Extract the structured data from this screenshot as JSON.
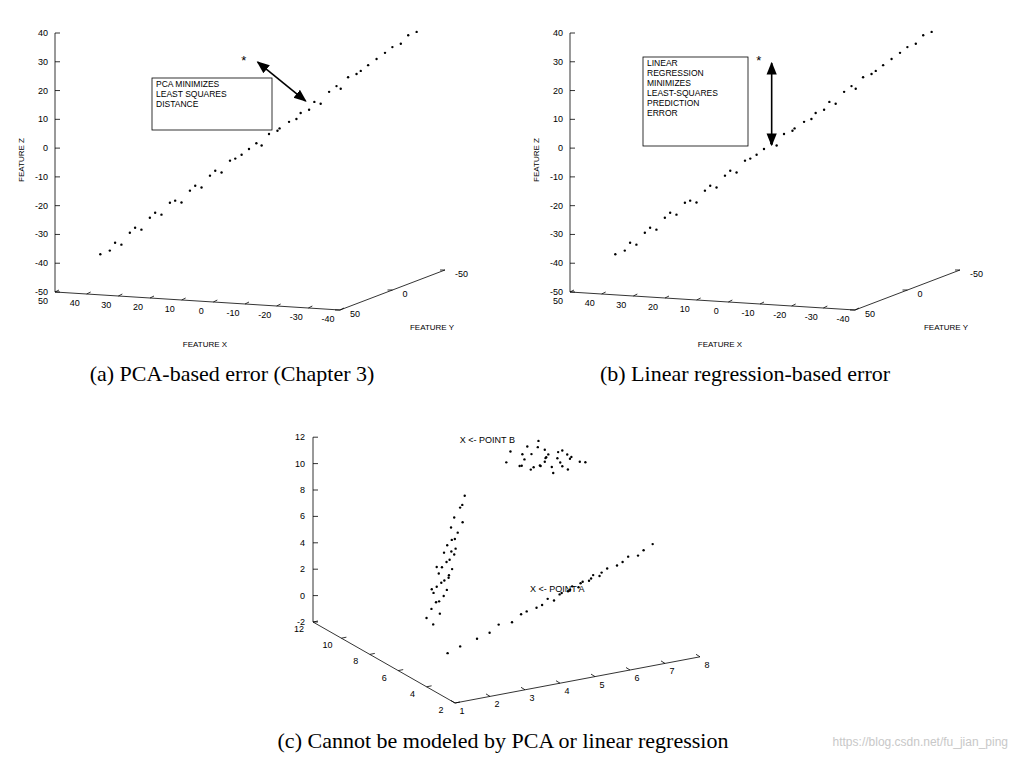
{
  "chart_data": [
    {
      "type": "scatter",
      "title": "(a) PCA-based error (Chapter 3)",
      "xlabel": "FEATURE X",
      "ylabel": "FEATURE Y",
      "zlabel": "FEATURE Z",
      "xlim": [
        50,
        -40
      ],
      "xticks": [
        50,
        40,
        30,
        20,
        10,
        0,
        -10,
        -20,
        -30,
        -40
      ],
      "ylim": [
        50,
        -50
      ],
      "yticks": [
        50,
        0,
        -50
      ],
      "zlim": [
        -50,
        40
      ],
      "zticks": [
        -50,
        -40,
        -30,
        -20,
        -10,
        0,
        10,
        20,
        30,
        40
      ],
      "series": [
        {
          "color": "#000000",
          "marker": "dot",
          "x": [
            40,
            38,
            36,
            35,
            33,
            31,
            30,
            28,
            26,
            25,
            23,
            21,
            20,
            18,
            16,
            15,
            13,
            11,
            10,
            8,
            6,
            5,
            3,
            1,
            0,
            -2,
            -4,
            -5,
            -7,
            -9,
            -10,
            -12,
            -14,
            -15,
            -17,
            -19,
            -20,
            -22,
            -24,
            -25,
            -27,
            -29,
            -31,
            -33,
            -35,
            -37,
            -39
          ],
          "y": [
            37,
            34,
            35,
            32,
            30,
            31,
            28,
            26,
            27,
            24,
            22,
            23,
            20,
            18,
            19,
            16,
            14,
            15,
            12,
            10,
            11,
            8,
            7,
            6,
            4,
            3,
            1,
            2,
            -1,
            -2,
            -3,
            -5,
            -4,
            -7,
            -9,
            -10,
            -11,
            -12,
            -14,
            -15,
            -16,
            -18,
            -20,
            -21,
            -23,
            -24,
            -26
          ],
          "z": [
            -38,
            -37,
            -34,
            -35,
            -31,
            -29,
            -30,
            -26,
            -24,
            -25,
            -21,
            -20,
            -21,
            -17,
            -15,
            -16,
            -12,
            -10,
            -11,
            -7,
            -6,
            -5,
            -3,
            -1,
            -2,
            2,
            3,
            4,
            6,
            7,
            9,
            10,
            13,
            12,
            16,
            18,
            17,
            21,
            22,
            23,
            25,
            27,
            29,
            31,
            32,
            35,
            36
          ]
        }
      ],
      "annotations": [
        {
          "text": "*",
          "x": 7,
          "y": 0,
          "z": 27
        }
      ],
      "box_text": [
        "PCA MINIMIZES",
        "LEAST SQUARES",
        "DISTANCE"
      ]
    },
    {
      "type": "scatter",
      "title": "(b) Linear regression-based error",
      "xlabel": "FEATURE X",
      "ylabel": "FEATURE Y",
      "zlabel": "FEATURE Z",
      "xlim": [
        50,
        -40
      ],
      "xticks": [
        50,
        40,
        30,
        20,
        10,
        0,
        -10,
        -20,
        -30,
        -40
      ],
      "ylim": [
        50,
        -50
      ],
      "yticks": [
        50,
        0,
        -50
      ],
      "zlim": [
        -50,
        40
      ],
      "zticks": [
        -50,
        -40,
        -30,
        -20,
        -10,
        0,
        10,
        20,
        30,
        40
      ],
      "series": [
        {
          "color": "#000000",
          "marker": "dot",
          "x": [
            40,
            38,
            36,
            35,
            33,
            31,
            30,
            28,
            26,
            25,
            23,
            21,
            20,
            18,
            16,
            15,
            13,
            11,
            10,
            8,
            6,
            5,
            3,
            1,
            0,
            -2,
            -4,
            -5,
            -7,
            -9,
            -10,
            -12,
            -14,
            -15,
            -17,
            -19,
            -20,
            -22,
            -24,
            -25,
            -27,
            -29,
            -31,
            -33,
            -35,
            -37,
            -39
          ],
          "y": [
            37,
            34,
            35,
            32,
            30,
            31,
            28,
            26,
            27,
            24,
            22,
            23,
            20,
            18,
            19,
            16,
            14,
            15,
            12,
            10,
            11,
            8,
            7,
            6,
            4,
            3,
            1,
            2,
            -1,
            -2,
            -3,
            -5,
            -4,
            -7,
            -9,
            -10,
            -11,
            -12,
            -14,
            -15,
            -16,
            -18,
            -20,
            -21,
            -23,
            -24,
            -26
          ],
          "z": [
            -38,
            -37,
            -34,
            -35,
            -31,
            -29,
            -30,
            -26,
            -24,
            -25,
            -21,
            -20,
            -21,
            -17,
            -15,
            -16,
            -12,
            -10,
            -11,
            -7,
            -6,
            -5,
            -3,
            -1,
            -2,
            2,
            3,
            4,
            6,
            7,
            9,
            10,
            13,
            12,
            16,
            18,
            17,
            21,
            22,
            23,
            25,
            27,
            29,
            31,
            32,
            35,
            36
          ]
        }
      ],
      "annotations": [
        {
          "text": "*",
          "x": 7,
          "y": 0,
          "z": 27
        }
      ],
      "box_text": [
        "LINEAR",
        "REGRESSION",
        "MINIMIZES",
        "LEAST-SQUARES",
        "PREDICTION",
        "ERROR"
      ]
    },
    {
      "type": "scatter",
      "title": "(c) Cannot be modeled by PCA or linear regression",
      "xlim": [
        1,
        8
      ],
      "xticks": [
        1,
        2,
        3,
        4,
        5,
        6,
        7,
        8
      ],
      "ylim": [
        2,
        12
      ],
      "yticks": [
        2,
        4,
        6,
        8,
        10,
        12
      ],
      "zlim": [
        -2,
        12
      ],
      "zticks": [
        -2,
        0,
        2,
        4,
        6,
        8,
        10,
        12
      ],
      "series": [
        {
          "color": "#000000",
          "marker": "dot",
          "x": [
            4.9,
            5.1,
            5.3,
            5.4,
            5.5,
            5.6,
            5.7,
            5.8,
            5.9,
            6.0,
            6.0,
            6.1,
            6.2,
            6.3,
            6.4,
            6.5,
            6.6,
            6.8,
            7.0,
            7.2,
            5.2,
            5.6,
            5.9,
            6.2,
            6.5,
            6.8,
            5.5,
            5.8,
            6.1,
            6.4,
            6.7,
            6.0
          ],
          "y": [
            8,
            8.2,
            7.9,
            8.1,
            8,
            7.8,
            8.2,
            8,
            8.1,
            7.9,
            8,
            8.2,
            8,
            7.8,
            8.1,
            8,
            7.9,
            8.2,
            8,
            8.1,
            7.8,
            8,
            8.2,
            7.9,
            8,
            8.1,
            8.2,
            7.8,
            8,
            7.9,
            8.1,
            8
          ],
          "z": [
            10.6,
            11.2,
            10.2,
            10.9,
            11.5,
            10.0,
            10.7,
            11.3,
            9.8,
            10.5,
            11.0,
            10.2,
            9.6,
            10.8,
            10.1,
            9.5,
            10.4,
            9.8,
            9.6,
            9.4,
            10.3,
            9.7,
            11.6,
            9.2,
            10.7,
            10.0,
            10.4,
            10.0,
            10.6,
            9.9,
            9.1,
            10.1
          ]
        },
        {
          "color": "#000000",
          "marker": "dot",
          "x": [
            2.0,
            1.85,
            2.15,
            1.95,
            2.25,
            2.0,
            2.3,
            2.05,
            2.35,
            2.1,
            2.4,
            2.15,
            2.45,
            2.2,
            2.5,
            2.25,
            2.55,
            2.3,
            2.6,
            2.35,
            2.6,
            2.4,
            2.7,
            2.45,
            2.7,
            2.55,
            2.8,
            2.6,
            2.85,
            2.75,
            2.9,
            2.0,
            2.4,
            2.1,
            2.6
          ],
          "y": [
            6,
            6.1,
            5.9,
            6,
            6.2,
            5.8,
            6,
            6.1,
            5.9,
            6,
            6.2,
            5.8,
            6,
            6.1,
            5.9,
            6,
            6.2,
            5.8,
            6,
            6.1,
            5.9,
            6,
            6.2,
            5.8,
            6,
            6.1,
            5.9,
            6,
            6.2,
            5.8,
            6,
            6.1,
            5.9,
            6,
            6.2
          ],
          "z": [
            1.0,
            1.5,
            1.8,
            2.2,
            2.5,
            2.8,
            3.0,
            3.3,
            3.5,
            3.8,
            4.0,
            4.2,
            4.5,
            4.7,
            5.0,
            5.2,
            5.5,
            5.7,
            6.0,
            6.2,
            6.5,
            6.8,
            7.0,
            7.3,
            7.6,
            8.0,
            8.4,
            8.8,
            9.3,
            9.8,
            10.3,
            3.6,
            4.4,
            5.3,
            6.1
          ]
        },
        {
          "color": "#000000",
          "marker": "dot",
          "x": [
            1.6,
            2.0,
            2.4,
            2.8,
            3.1,
            3.4,
            3.7,
            3.9,
            4.1,
            4.3,
            4.5,
            4.6,
            4.8,
            4.9,
            5.0,
            5.1,
            5.2,
            5.3,
            5.4,
            5.5,
            5.6,
            5.7,
            5.8,
            5.9,
            6.0,
            6.2,
            6.4,
            6.6,
            6.8,
            7.0,
            7.2,
            7.5
          ],
          "y": [
            4,
            4.1,
            3.9,
            4,
            4.1,
            3.9,
            4,
            4.1,
            3.9,
            4,
            4.1,
            3.9,
            4,
            4.1,
            3.9,
            4,
            4.1,
            3.9,
            4,
            4.1,
            3.9,
            4,
            4.1,
            3.9,
            4,
            4.1,
            3.9,
            4,
            4.1,
            3.9,
            4,
            4.1
          ],
          "z": [
            0.25,
            0.5,
            1.0,
            1.2,
            1.6,
            1.75,
            2.15,
            2.2,
            2.5,
            2.55,
            2.85,
            2.8,
            3.1,
            3.1,
            3.3,
            3.3,
            3.45,
            3.45,
            3.65,
            3.65,
            3.8,
            3.85,
            4.0,
            4.0,
            4.15,
            4.3,
            4.55,
            4.65,
            4.9,
            5.0,
            5.25,
            5.5
          ]
        }
      ],
      "annotations": [
        {
          "text": "X <- POINT B",
          "x": 4.47,
          "y": 10,
          "z": 11.3
        },
        {
          "text": "X <- POINT A",
          "x": 4.04,
          "y": 4,
          "z": 3.96
        }
      ]
    }
  ],
  "watermark": "https://blog.csdn.net/fu_jian_ping"
}
